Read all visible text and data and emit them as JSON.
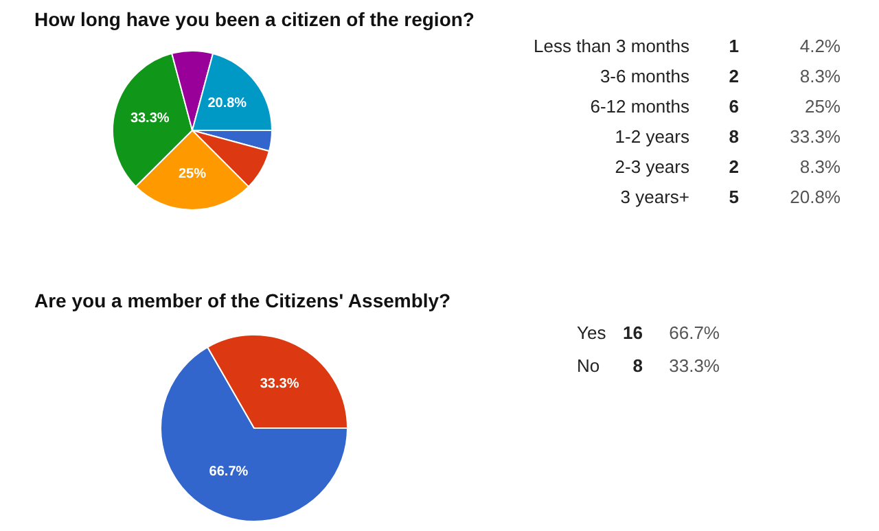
{
  "chart_data": [
    {
      "type": "pie",
      "title": "How long have you been a citizen of the region?",
      "categories": [
        null,
        null,
        null,
        null,
        null,
        null
      ],
      "values": [
        4.2,
        8.3,
        25,
        33.3,
        8.3,
        20.8
      ],
      "colors": [
        "#3366cc",
        "#dc3912",
        "#ff9900",
        "#109618",
        "#990099",
        "#0099c6"
      ],
      "value_labels": [
        null,
        null,
        "25%",
        "33.3%",
        null,
        "20.8%"
      ]
    },
    {
      "type": "other",
      "y_categories": [
        "Less than 3 months",
        "3-6 months",
        "6-12 months",
        "1-2 years",
        "2-3 years",
        "3 years+"
      ],
      "cell_labels": [
        [
          "1",
          "4.2%"
        ],
        [
          "2",
          "8.3%"
        ],
        [
          "6",
          "25%"
        ],
        [
          "8",
          "33.3%"
        ],
        [
          "2",
          "8.3%"
        ],
        [
          "5",
          "20.8%"
        ]
      ]
    },
    {
      "type": "pie",
      "title": "Are you a member of the Citizens' Assembly?",
      "categories": [
        null,
        null
      ],
      "values": [
        66.7,
        33.3
      ],
      "colors": [
        "#3366cc",
        "#dc3912"
      ],
      "value_labels": [
        "66.7%",
        "33.3%"
      ]
    },
    {
      "type": "other",
      "y_categories": [
        "Yes",
        "No"
      ],
      "cell_labels": [
        [
          "16",
          "66.7%"
        ],
        [
          "8",
          "33.3%"
        ]
      ]
    }
  ]
}
